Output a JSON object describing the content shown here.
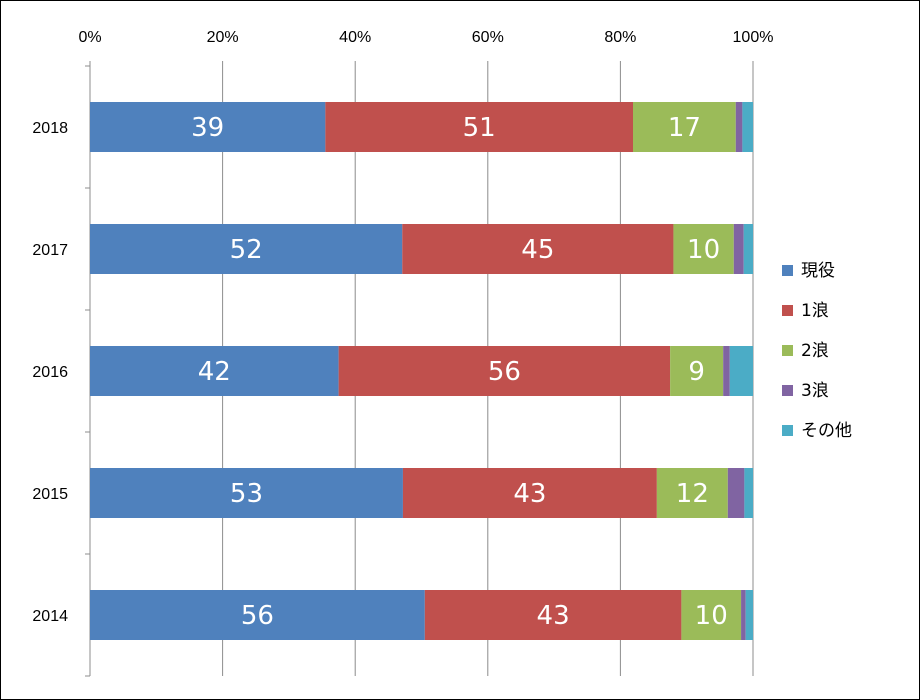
{
  "chart_data": {
    "type": "bar",
    "orientation": "horizontal",
    "stacked": "percent",
    "categories": [
      "2018",
      "2017",
      "2016",
      "2015",
      "2014"
    ],
    "x_ticks": [
      "0%",
      "20%",
      "40%",
      "60%",
      "80%",
      "100%"
    ],
    "xlim": [
      0,
      100
    ],
    "grid": true,
    "legend_position": "right",
    "series": [
      {
        "name": "現役",
        "color": "#4F81BD",
        "values": [
          39,
          52,
          42,
          53,
          56
        ],
        "shares": [
          35.5,
          47.1,
          37.5,
          47.2,
          50.5
        ]
      },
      {
        "name": "1浪",
        "color": "#C0504D",
        "values": [
          51,
          45,
          56,
          43,
          43
        ],
        "shares": [
          46.4,
          40.9,
          50.0,
          38.3,
          38.7
        ]
      },
      {
        "name": "2浪",
        "color": "#9BBB59",
        "values": [
          17,
          10,
          9,
          12,
          10
        ],
        "shares": [
          15.5,
          9.1,
          8.0,
          10.7,
          9.0
        ]
      },
      {
        "name": "3浪",
        "color": "#8064A2",
        "values": [
          null,
          null,
          null,
          null,
          null
        ],
        "shares": [
          1.0,
          1.5,
          1.0,
          2.5,
          0.7
        ]
      },
      {
        "name": "その他",
        "color": "#4BACC6",
        "values": [
          null,
          null,
          null,
          null,
          null
        ],
        "shares": [
          1.6,
          1.4,
          3.5,
          1.3,
          1.1
        ]
      }
    ]
  }
}
